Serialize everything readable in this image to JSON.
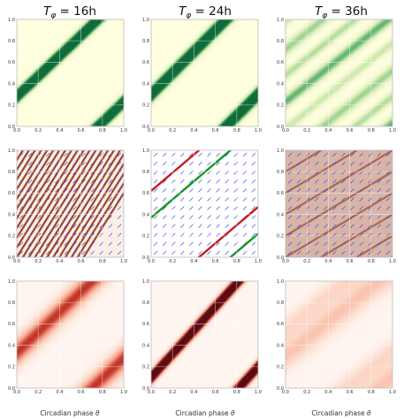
{
  "chart_data": {
    "type": "heatmap",
    "columns": [
      {
        "period_label": "16h",
        "title": "T_φ = 16h"
      },
      {
        "period_label": "24h",
        "title": "T_φ = 24h"
      },
      {
        "period_label": "36h",
        "title": "T_φ = 36h"
      }
    ],
    "title_symbol": "T",
    "title_subscript": "φ",
    "xticks": [
      "0.0",
      "0.2",
      "0.4",
      "0.6",
      "0.8",
      "1.0"
    ],
    "yticks": [
      "0.0",
      "0.2",
      "0.4",
      "0.6",
      "0.8",
      "1.0"
    ],
    "xlim": [
      0,
      1
    ],
    "ylim": [
      0,
      1
    ],
    "grid": true,
    "xlabel": "Circadian phase θ",
    "xlabel_text": "Circadian phase ",
    "xlabel_symbol": "θ",
    "rows": [
      {
        "row": "top",
        "kind": "density",
        "colormap": [
          "#ffffe0",
          "#eef6c8",
          "#c4e4a8",
          "#5fb274",
          "#0f6b3a"
        ],
        "panels": [
          {
            "column": "16h",
            "ridges": [
              {
                "slope": 0.95,
                "offset": 0.28,
                "width": 0.045,
                "peak": 1.0
              },
              {
                "slope": 0.95,
                "offset": -0.72,
                "width": 0.045,
                "peak": 1.0
              }
            ]
          },
          {
            "column": "24h",
            "ridges": [
              {
                "slope": 1.0,
                "offset": 0.3,
                "width": 0.05,
                "peak": 1.0
              },
              {
                "slope": 1.0,
                "offset": -0.7,
                "width": 0.05,
                "peak": 1.0
              }
            ]
          },
          {
            "column": "36h",
            "ridges": [
              {
                "slope": 0.8,
                "offset": 0.23,
                "width": 0.05,
                "peak": 0.75
              },
              {
                "slope": 0.8,
                "offset": 0.48,
                "width": 0.04,
                "peak": 0.55
              },
              {
                "slope": 0.8,
                "offset": 0.72,
                "width": 0.05,
                "peak": 0.6
              },
              {
                "slope": 0.8,
                "offset": -0.02,
                "width": 0.04,
                "peak": 0.45
              }
            ]
          }
        ]
      },
      {
        "row": "middle",
        "kind": "vector-field",
        "arrow_color": "#3a4fe0",
        "panels": [
          {
            "column": "16h",
            "background": "#fbeee6",
            "stripe_color": "#8b2a10",
            "stripe_count": 11,
            "stripe_slope": 1.6,
            "lines": []
          },
          {
            "column": "24h",
            "background": "#ffffff",
            "stripe_color": "",
            "stripe_count": 0,
            "stripe_slope": 0,
            "lines": [
              {
                "color": "#cc1a1a",
                "slope": 0.85,
                "offset": 0.62
              },
              {
                "color": "#119a19",
                "slope": 0.85,
                "offset": 0.37
              },
              {
                "color": "#cc1a1a",
                "slope": 0.85,
                "offset": -0.38
              },
              {
                "color": "#119a19",
                "slope": 0.85,
                "offset": -0.63
              }
            ]
          },
          {
            "column": "36h",
            "background": "#d8b4a8",
            "stripe_color": "#a05a40",
            "stripe_count": 5,
            "stripe_slope": 0.6,
            "lines": []
          }
        ]
      },
      {
        "row": "bottom",
        "kind": "density",
        "colormap": [
          "#fff5f0",
          "#fcd3c1",
          "#f5a086",
          "#c4352a",
          "#5a0c12"
        ],
        "panels": [
          {
            "column": "16h",
            "ridges": [
              {
                "slope": 0.95,
                "offset": 0.33,
                "width": 0.09,
                "peak": 0.38
              },
              {
                "slope": 0.95,
                "offset": -0.67,
                "width": 0.09,
                "peak": 0.38
              }
            ]
          },
          {
            "column": "24h",
            "ridges": [
              {
                "slope": 1.1,
                "offset": 0.1,
                "width": 0.04,
                "peak": 1.0
              },
              {
                "slope": 1.1,
                "offset": -0.9,
                "width": 0.04,
                "peak": 1.0
              }
            ]
          },
          {
            "column": "36h",
            "ridges": [
              {
                "slope": 0.8,
                "offset": 0.3,
                "width": 0.1,
                "peak": 0.32
              },
              {
                "slope": 0.8,
                "offset": 0.55,
                "width": 0.08,
                "peak": 0.22
              }
            ]
          }
        ]
      }
    ]
  }
}
